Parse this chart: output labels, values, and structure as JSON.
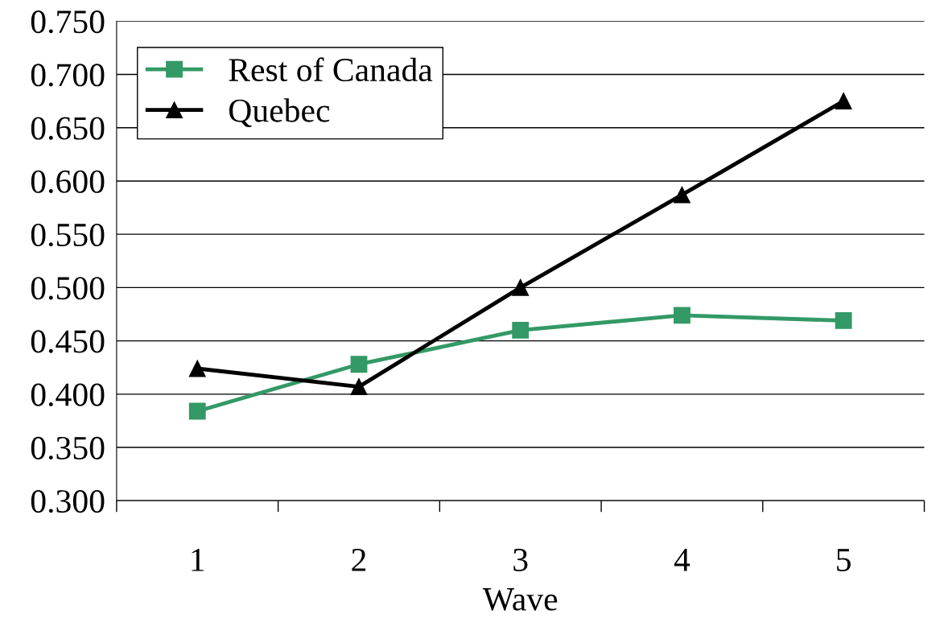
{
  "chart_data": {
    "type": "line",
    "xlabel": "Wave",
    "categories": [
      "1",
      "2",
      "3",
      "4",
      "5"
    ],
    "series": [
      {
        "name": "Rest of Canada",
        "color": "#339966",
        "marker": "square",
        "values": [
          0.384,
          0.428,
          0.46,
          0.474,
          0.469
        ]
      },
      {
        "name": "Quebec",
        "color": "#000000",
        "marker": "triangle",
        "values": [
          0.424,
          0.407,
          0.5,
          0.587,
          0.675
        ]
      }
    ],
    "ylim": [
      0.3,
      0.75
    ],
    "yticks": [
      {
        "value": 0.3,
        "label": "0.300"
      },
      {
        "value": 0.35,
        "label": "0.350"
      },
      {
        "value": 0.4,
        "label": "0.400"
      },
      {
        "value": 0.45,
        "label": "0.450"
      },
      {
        "value": 0.5,
        "label": "0.500"
      },
      {
        "value": 0.55,
        "label": "0.550"
      },
      {
        "value": 0.6,
        "label": "0.600"
      },
      {
        "value": 0.65,
        "label": "0.650"
      },
      {
        "value": 0.7,
        "label": "0.700"
      },
      {
        "value": 0.75,
        "label": "0.750"
      }
    ],
    "grid": "y",
    "legend": "top left",
    "line_style": "solid"
  }
}
